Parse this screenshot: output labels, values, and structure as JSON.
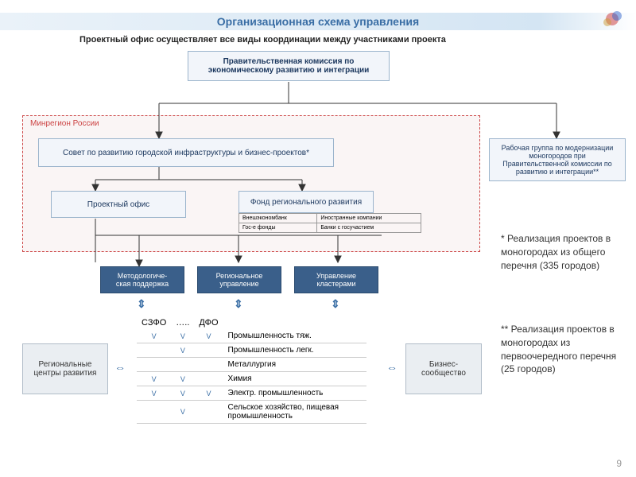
{
  "header": {
    "title": "Организационная схема управления"
  },
  "subtitle": "Проектный офис осуществляет все виды координации между участниками проекта",
  "region": {
    "label": "Минрегион России"
  },
  "boxes": {
    "top": "Правительственная комиссия по экономическому развитию и интеграции",
    "council": "Совет по развитию городской инфраструктуры и бизнес-проектов*",
    "workgroup": "Рабочая группа по модернизации моногородов при Правительственной комиссии по развитию и интеграции**",
    "office": "Проектный офис",
    "fund": "Фонд регионального развития",
    "method": "Методологиче-\nская поддержка",
    "regmgmt": "Региональное управление",
    "clusters": "Управление кластерами",
    "regcenters": "Региональные центры развития",
    "business": "Бизнес-сообщество"
  },
  "subtable": {
    "rows": [
      [
        "Внешэкономбанк",
        "Иностранные компании"
      ],
      [
        "Гос-е фонды",
        "Банки с госучастием"
      ]
    ]
  },
  "sector": {
    "col1": "СЗФО",
    "col2": "…..",
    "col3": "ДФО",
    "rows": [
      {
        "m": [
          "V",
          "V",
          "V"
        ],
        "label": "Промышленность тяж."
      },
      {
        "m": [
          "",
          "V",
          ""
        ],
        "label": "Промышленность легк."
      },
      {
        "m": [
          "",
          "",
          ""
        ],
        "label": "Металлургия"
      },
      {
        "m": [
          "V",
          "V",
          ""
        ],
        "label": "Химия"
      },
      {
        "m": [
          "V",
          "V",
          "V"
        ],
        "label": "Электр. промышленность"
      },
      {
        "m": [
          "",
          "V",
          ""
        ],
        "label": "Сельское хозяйство, пищевая промышленность"
      }
    ]
  },
  "notes": {
    "n1": "* Реализация проектов в моногородах из общего перечня (335 городов)",
    "n2": "** Реализация проектов в моногородах из первоочередного перечня (25 городов)"
  },
  "pagenum": "9",
  "colors": {
    "boxBg": "#f2f5fa",
    "boxBorder": "#9bb4cc",
    "darkBg": "#3a5f8a",
    "regionBorder": "#c44",
    "line": "#333"
  }
}
